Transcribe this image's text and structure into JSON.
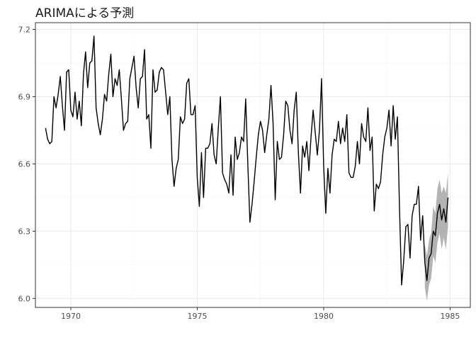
{
  "chart_data": {
    "type": "line",
    "title": "ARIMAによる予測",
    "xlabel": "",
    "ylabel": "",
    "xlim": [
      1968.6,
      1985.8
    ],
    "ylim": [
      5.96,
      7.23
    ],
    "x_ticks": [
      1970,
      1975,
      1980,
      1985
    ],
    "y_ticks": [
      6.0,
      6.3,
      6.6,
      6.9,
      7.2
    ],
    "y_tick_labels": [
      "6.0",
      "6.3",
      "6.6",
      "6.9",
      "7.2"
    ],
    "grid": true,
    "legend": "none",
    "colors": {
      "line": "#000000",
      "interval": "#b3b3b3",
      "grid_major": "#ebebeb",
      "grid_minor": "#f5f5f5",
      "panel_border": "#333333"
    },
    "series": [
      {
        "x_start": 1969.0,
        "x_step": 0.08333,
        "values": [
          6.76,
          6.71,
          6.69,
          6.7,
          6.9,
          6.85,
          6.91,
          6.99,
          6.86,
          6.75,
          7.01,
          7.02,
          6.84,
          6.81,
          6.92,
          6.8,
          6.88,
          6.77,
          7.0,
          7.1,
          6.94,
          7.05,
          7.06,
          7.17,
          6.85,
          6.78,
          6.73,
          6.8,
          6.91,
          6.88,
          7.0,
          7.09,
          6.9,
          6.98,
          6.95,
          7.02,
          6.89,
          6.75,
          6.78,
          6.79,
          6.98,
          7.03,
          7.08,
          6.94,
          6.85,
          6.98,
          6.99,
          7.11,
          6.8,
          6.82,
          6.67,
          7.02,
          6.92,
          6.93,
          7.01,
          7.03,
          7.02,
          6.92,
          6.82,
          6.9,
          6.62,
          6.5,
          6.58,
          6.62,
          6.81,
          6.78,
          6.8,
          6.96,
          6.98,
          6.82,
          6.82,
          6.86,
          6.54,
          6.41,
          6.65,
          6.45,
          6.67,
          6.67,
          6.69,
          6.78,
          6.64,
          6.6,
          6.76,
          6.9,
          6.56,
          6.53,
          6.51,
          6.47,
          6.64,
          6.46,
          6.72,
          6.62,
          6.65,
          6.72,
          6.7,
          6.89,
          6.6,
          6.34,
          6.42,
          6.52,
          6.63,
          6.73,
          6.79,
          6.75,
          6.65,
          6.73,
          6.8,
          6.95,
          6.78,
          6.44,
          6.7,
          6.62,
          6.63,
          6.73,
          6.88,
          6.86,
          6.75,
          6.69,
          6.84,
          6.92,
          6.65,
          6.47,
          6.68,
          6.63,
          6.7,
          6.57,
          6.72,
          6.84,
          6.74,
          6.64,
          6.75,
          6.98,
          6.59,
          6.38,
          6.58,
          6.47,
          6.64,
          6.71,
          6.7,
          6.79,
          6.69,
          6.76,
          6.7,
          6.82,
          6.56,
          6.54,
          6.54,
          6.59,
          6.7,
          6.6,
          6.78,
          6.72,
          6.7,
          6.85,
          6.66,
          6.72,
          6.39,
          6.51,
          6.49,
          6.52,
          6.64,
          6.72,
          6.76,
          6.84,
          6.68,
          6.86,
          6.71,
          6.81,
          6.4,
          6.06,
          6.17,
          6.32,
          6.33,
          6.18,
          6.37,
          6.42,
          6.42,
          6.5,
          6.26,
          6.37
        ],
        "forecast": {
          "x_start": 1984.0,
          "x_step": 0.08333,
          "mean": [
            6.16,
            6.08,
            6.18,
            6.2,
            6.3,
            6.28,
            6.38,
            6.42,
            6.35,
            6.4,
            6.34,
            6.45
          ],
          "lower": [
            6.05,
            5.99,
            6.06,
            6.09,
            6.19,
            6.16,
            6.25,
            6.29,
            6.22,
            6.27,
            6.22,
            6.32
          ],
          "upper": [
            6.24,
            6.19,
            6.26,
            6.29,
            6.41,
            6.38,
            6.49,
            6.53,
            6.47,
            6.5,
            6.47,
            6.56
          ]
        }
      }
    ]
  }
}
